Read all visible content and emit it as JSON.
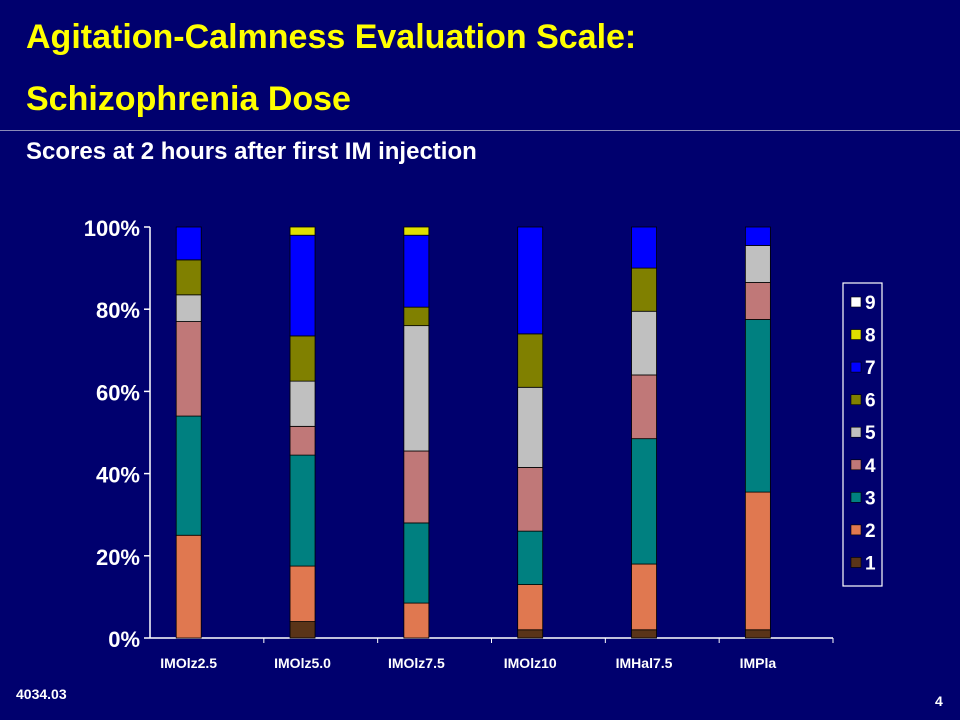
{
  "slide": {
    "title_line1": "Agitation-Calmness Evaluation Scale:",
    "title_line2": "Schizophrenia Dose",
    "subtitle": "Scores at 2 hours after first IM injection",
    "footer_code": "4034.03",
    "page_number": "4"
  },
  "chart_data": {
    "type": "bar",
    "stacked": true,
    "categories": [
      "IMOlz2.5",
      "IMOlz5.0",
      "IMOlz7.5",
      "IMOlz10",
      "IMHal7.5",
      "IMPla"
    ],
    "ylim": [
      0,
      100
    ],
    "yticks": [
      "0%",
      "20%",
      "40%",
      "60%",
      "80%",
      "100%"
    ],
    "legend_position": "right",
    "series": [
      {
        "name": "1",
        "color": "#5a3418",
        "values": [
          0,
          4,
          0,
          2,
          2,
          2
        ]
      },
      {
        "name": "2",
        "color": "#e07850",
        "values": [
          25,
          13.5,
          8.5,
          11,
          16,
          33.5
        ]
      },
      {
        "name": "3",
        "color": "#008080",
        "values": [
          29,
          27,
          19.5,
          13,
          30.5,
          42
        ]
      },
      {
        "name": "4",
        "color": "#c07878",
        "values": [
          23,
          7,
          17.5,
          15.5,
          15.5,
          9
        ]
      },
      {
        "name": "5",
        "color": "#c0c0c0",
        "values": [
          6.5,
          11,
          30.5,
          19.5,
          15.5,
          9
        ]
      },
      {
        "name": "6",
        "color": "#808000",
        "values": [
          8.5,
          11,
          4.5,
          13,
          10.5,
          0
        ]
      },
      {
        "name": "7",
        "color": "#0000ff",
        "values": [
          8,
          24.5,
          17.5,
          26,
          10,
          4.5
        ]
      },
      {
        "name": "8",
        "color": "#e0e000",
        "values": [
          0,
          2,
          2,
          0,
          0,
          0
        ]
      },
      {
        "name": "9",
        "color": "#ffffff",
        "values": [
          0,
          0,
          0,
          0,
          0,
          0
        ]
      }
    ]
  }
}
